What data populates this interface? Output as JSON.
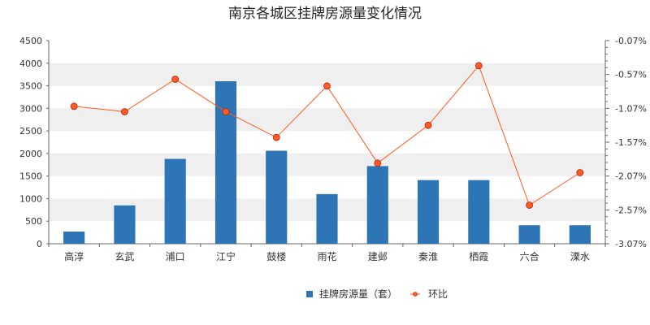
{
  "chart_data": {
    "type": "bar",
    "title": "南京各城区挂牌房源量变化情况",
    "categories": [
      "高淳",
      "玄武",
      "浦口",
      "江宁",
      "鼓楼",
      "雨花",
      "建邺",
      "秦淮",
      "栖霞",
      "六合",
      "溧水"
    ],
    "series": [
      {
        "name": "挂牌房源量(套)",
        "type": "bar",
        "axis": "left",
        "color": "#2e75b6",
        "values": [
          270,
          850,
          1880,
          3600,
          2060,
          1100,
          1720,
          1410,
          1410,
          410,
          410
        ]
      },
      {
        "name": "环比",
        "type": "line",
        "axis": "right",
        "color": "#ff5a1f",
        "values": [
          -1.04,
          -1.12,
          -0.64,
          -1.12,
          -1.5,
          -0.74,
          -1.88,
          -1.32,
          -0.44,
          -2.5,
          -2.02
        ]
      }
    ],
    "y_left": {
      "lim": [
        0,
        4500
      ],
      "ticks": [
        "0",
        "500",
        "1000",
        "1500",
        "2000",
        "2500",
        "3000",
        "3500",
        "4000",
        "4500"
      ]
    },
    "y_right": {
      "lim": [
        -3.07,
        -0.07
      ],
      "ticks": [
        "-0.07%",
        "-0.57%",
        "-1.07%",
        "-1.57%",
        "-2.07%",
        "-2.57%",
        "-3.07%"
      ]
    },
    "grid": "horizontal bands",
    "legend": "bottom-center",
    "legend_labels": [
      "挂牌房源量（套）",
      "环比"
    ]
  }
}
